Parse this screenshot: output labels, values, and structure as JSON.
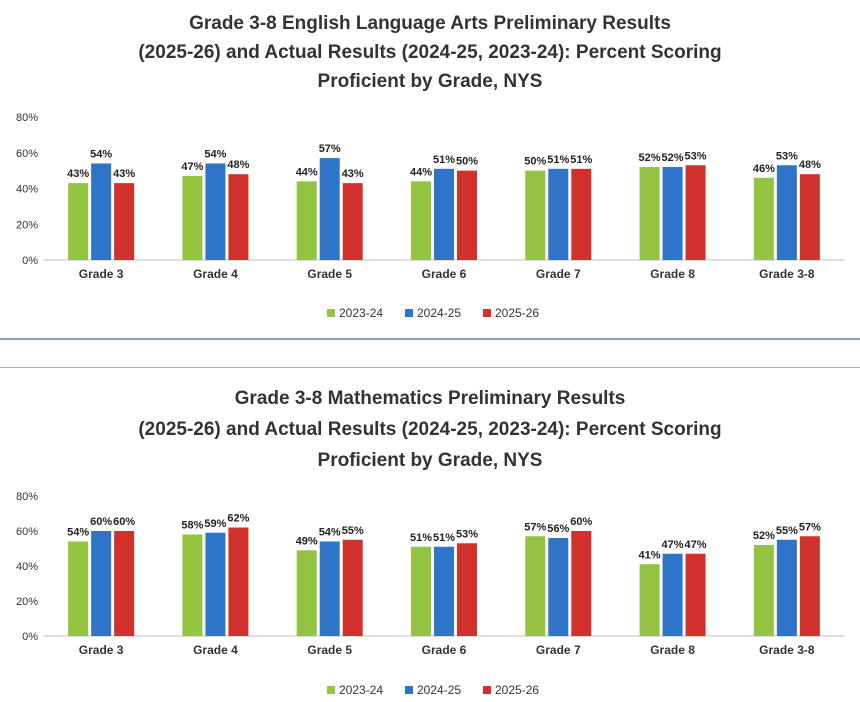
{
  "colors": {
    "2023-24": "#92c441",
    "2024-25": "#2e74c8",
    "2025-26": "#d0312d"
  },
  "chart_data": [
    {
      "type": "bar",
      "title_lines": [
        "Grade 3-8 English Language Arts Preliminary Results",
        "(2025-26) and Actual Results (2024-25, 2023-24): Percent Scoring",
        "Proficient by Grade, NYS"
      ],
      "categories": [
        "Grade 3",
        "Grade 4",
        "Grade 5",
        "Grade 6",
        "Grade 7",
        "Grade 8",
        "Grade 3-8"
      ],
      "series": [
        {
          "name": "2023-24",
          "values": [
            43,
            47,
            44,
            44,
            50,
            52,
            46
          ],
          "labels": [
            "43%",
            "47%",
            "44%",
            "44%",
            "50%",
            "52%",
            "46%"
          ]
        },
        {
          "name": "2024-25",
          "values": [
            54,
            54,
            57,
            51,
            51,
            52,
            53
          ],
          "labels": [
            "54%",
            "54%",
            "57%",
            "51%",
            "51%",
            "52%",
            "53%"
          ]
        },
        {
          "name": "2025-26",
          "values": [
            43,
            48,
            43,
            50,
            51,
            53,
            48
          ],
          "labels": [
            "43%",
            "48%",
            "43%",
            "50%",
            "51%",
            "53%",
            "48%"
          ]
        }
      ],
      "yticks": [
        "0%",
        "20%",
        "40%",
        "60%",
        "80%"
      ],
      "ylim": [
        0,
        80
      ],
      "grid": false,
      "legend": "bottom"
    },
    {
      "type": "bar",
      "title_lines": [
        "Grade 3-8 Mathematics Preliminary Results",
        "(2025-26) and Actual Results (2024-25, 2023-24): Percent Scoring",
        "Proficient by Grade, NYS"
      ],
      "categories": [
        "Grade 3",
        "Grade 4",
        "Grade 5",
        "Grade 6",
        "Grade 7",
        "Grade 8",
        "Grade 3-8"
      ],
      "series": [
        {
          "name": "2023-24",
          "values": [
            54,
            58,
            49,
            51,
            57,
            41,
            52
          ],
          "labels": [
            "54%",
            "58%",
            "49%",
            "51%",
            "57%",
            "41%",
            "52%"
          ]
        },
        {
          "name": "2024-25",
          "values": [
            60,
            59,
            54,
            51,
            56,
            47,
            55
          ],
          "labels": [
            "60%",
            "59%",
            "54%",
            "51%",
            "56%",
            "47%",
            "55%"
          ]
        },
        {
          "name": "2025-26",
          "values": [
            60,
            62,
            55,
            53,
            60,
            47,
            57
          ],
          "labels": [
            "60%",
            "62%",
            "55%",
            "53%",
            "60%",
            "47%",
            "57%"
          ]
        }
      ],
      "yticks": [
        "0%",
        "20%",
        "40%",
        "60%",
        "80%"
      ],
      "ylim": [
        0,
        80
      ],
      "grid": false,
      "legend": "bottom"
    }
  ]
}
